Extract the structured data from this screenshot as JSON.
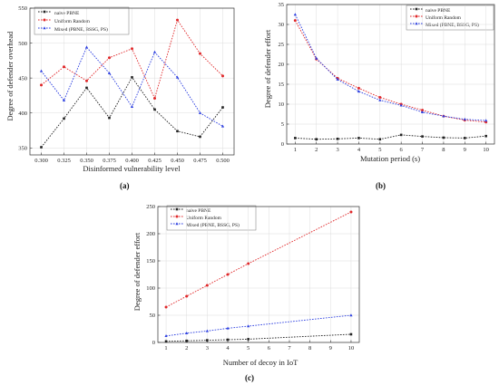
{
  "figure_labels": {
    "a": "(a)",
    "b": "(b)",
    "c": "(c)"
  },
  "colors": {
    "naive": "#222222",
    "uniform": "#e0282a",
    "mixed": "#2a3de0"
  },
  "chart_data": [
    {
      "id": "a",
      "type": "line",
      "xlabel": "Disinformed vulnerability level",
      "ylabel": "Degree of defender overhead",
      "x": [
        0.3,
        0.325,
        0.35,
        0.375,
        0.4,
        0.425,
        0.45,
        0.475,
        0.5
      ],
      "x_ticks": [
        "0.300",
        "0.325",
        "0.350",
        "0.375",
        "0.400",
        "0.425",
        "0.450",
        "0.475",
        "0.500"
      ],
      "xlim": [
        0.2875,
        0.5125
      ],
      "ylim": [
        340,
        550
      ],
      "y_ticks": [
        350,
        400,
        450,
        500,
        550
      ],
      "grid": true,
      "legend_placement": "top-left",
      "series": [
        {
          "name": "naive PBNE",
          "values": [
            351,
            392,
            436,
            393,
            451,
            405,
            374,
            366,
            408
          ]
        },
        {
          "name": "Uniform Random",
          "values": [
            440,
            466,
            446,
            479,
            492,
            421,
            533,
            485,
            453
          ]
        },
        {
          "name": "Mixed (PBNE, BSSG, PS)",
          "values": [
            460,
            418,
            494,
            457,
            409,
            487,
            451,
            400,
            381
          ]
        }
      ]
    },
    {
      "id": "b",
      "type": "line",
      "xlabel": "Mutation period (s)",
      "ylabel": "Degree of defender effort",
      "x": [
        1,
        2,
        3,
        4,
        5,
        6,
        7,
        8,
        9,
        10
      ],
      "x_ticks": [
        "1",
        "2",
        "3",
        "4",
        "5",
        "6",
        "7",
        "8",
        "9",
        "10"
      ],
      "xlim": [
        0.6,
        10.4
      ],
      "ylim": [
        0,
        35
      ],
      "y_ticks": [
        0,
        5,
        10,
        15,
        20,
        25,
        30,
        35
      ],
      "grid": true,
      "legend_placement": "top-right",
      "series": [
        {
          "name": "naive PBNE",
          "values": [
            1.5,
            1.2,
            1.3,
            1.5,
            1.2,
            2.3,
            1.9,
            1.6,
            1.5,
            2.0
          ]
        },
        {
          "name": "Uniform Random",
          "values": [
            31.0,
            21.3,
            16.5,
            14.0,
            11.7,
            10.0,
            8.5,
            7.0,
            6.0,
            5.5
          ]
        },
        {
          "name": "Mixed (PBNE, BSSG, PS)",
          "values": [
            32.5,
            21.5,
            16.2,
            13.2,
            11.0,
            9.7,
            8.0,
            7.0,
            6.2,
            5.9
          ]
        }
      ]
    },
    {
      "id": "c",
      "type": "line",
      "xlabel": "Number of decoy in IoT",
      "ylabel": "Degree of defender effort",
      "x": [
        1,
        2,
        3,
        4,
        5,
        10
      ],
      "x_ticks": [
        "1",
        "2",
        "3",
        "4",
        "5",
        "6",
        "7",
        "8",
        "9",
        "10"
      ],
      "xlim": [
        0.6,
        10.4
      ],
      "ylim": [
        0,
        250
      ],
      "y_ticks": [
        0,
        50,
        100,
        150,
        200,
        250
      ],
      "grid": true,
      "legend_placement": "top-left",
      "series": [
        {
          "name": "naive PBNE",
          "values": [
            2,
            3,
            4,
            5,
            6,
            15
          ]
        },
        {
          "name": "Uniform Random",
          "values": [
            65,
            85,
            105,
            125,
            145,
            240
          ]
        },
        {
          "name": "Mixed (PBNE, BSSG, PS)",
          "values": [
            12,
            17,
            21,
            26,
            30,
            50
          ]
        }
      ]
    }
  ]
}
